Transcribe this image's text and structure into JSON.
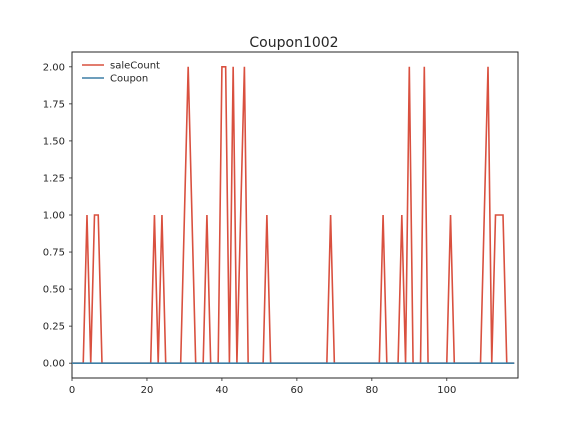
{
  "chart_data": {
    "type": "line",
    "title": "Coupon1002",
    "xlabel": "",
    "ylabel": "",
    "xlim": [
      0,
      119
    ],
    "ylim": [
      -0.1,
      2.1
    ],
    "xticks": [
      0,
      20,
      40,
      60,
      80,
      100
    ],
    "xtick_labels": [
      "0",
      "20",
      "40",
      "60",
      "80",
      "100"
    ],
    "yticks": [
      0.0,
      0.25,
      0.5,
      0.75,
      1.0,
      1.25,
      1.5,
      1.75,
      2.0
    ],
    "ytick_labels": [
      "0.00",
      "0.25",
      "0.50",
      "0.75",
      "1.00",
      "1.25",
      "1.50",
      "1.75",
      "2.00"
    ],
    "grid": false,
    "legend_position": "top-left",
    "series": [
      {
        "name": "saleCount",
        "color": "#d9503f",
        "x": [
          0,
          1,
          2,
          3,
          4,
          5,
          6,
          7,
          8,
          9,
          10,
          11,
          12,
          13,
          14,
          15,
          16,
          17,
          18,
          19,
          20,
          21,
          22,
          23,
          24,
          25,
          26,
          27,
          28,
          29,
          30,
          31,
          32,
          33,
          34,
          35,
          36,
          37,
          38,
          39,
          40,
          41,
          42,
          43,
          44,
          45,
          46,
          47,
          48,
          49,
          50,
          51,
          52,
          53,
          54,
          55,
          56,
          57,
          58,
          59,
          60,
          61,
          62,
          63,
          64,
          65,
          66,
          67,
          68,
          69,
          70,
          71,
          72,
          73,
          74,
          75,
          76,
          77,
          78,
          79,
          80,
          81,
          82,
          83,
          84,
          85,
          86,
          87,
          88,
          89,
          90,
          91,
          92,
          93,
          94,
          95,
          96,
          97,
          98,
          99,
          100,
          101,
          102,
          103,
          104,
          105,
          106,
          107,
          108,
          109,
          110,
          111,
          112,
          113,
          114,
          115,
          116,
          117,
          118
        ],
        "values": [
          0,
          0,
          0,
          0,
          1,
          0,
          1,
          1,
          0,
          0,
          0,
          0,
          0,
          0,
          0,
          0,
          0,
          0,
          0,
          0,
          0,
          0,
          1,
          0,
          1,
          0,
          0,
          0,
          0,
          0,
          1,
          2,
          1,
          0,
          0,
          0,
          1,
          0,
          0,
          0,
          2,
          2,
          0,
          2,
          0,
          1,
          2,
          0,
          0,
          0,
          0,
          0,
          1,
          0,
          0,
          0,
          0,
          0,
          0,
          0,
          0,
          0,
          0,
          0,
          0,
          0,
          0,
          0,
          0,
          1,
          0,
          0,
          0,
          0,
          0,
          0,
          0,
          0,
          0,
          0,
          0,
          0,
          0,
          1,
          0,
          0,
          0,
          0,
          1,
          0,
          2,
          0,
          0,
          0,
          2,
          0,
          0,
          0,
          0,
          0,
          0,
          1,
          0,
          0,
          0,
          0,
          0,
          0,
          0,
          0,
          1,
          2,
          0,
          1,
          1,
          1,
          0,
          0,
          0
        ]
      },
      {
        "name": "Coupon",
        "color": "#3d7fa6",
        "x": [
          0,
          1,
          2,
          3,
          4,
          5,
          6,
          7,
          8,
          9,
          10,
          11,
          12,
          13,
          14,
          15,
          16,
          17,
          18,
          19,
          20,
          21,
          22,
          23,
          24,
          25,
          26,
          27,
          28,
          29,
          30,
          31,
          32,
          33,
          34,
          35,
          36,
          37,
          38,
          39,
          40,
          41,
          42,
          43,
          44,
          45,
          46,
          47,
          48,
          49,
          50,
          51,
          52,
          53,
          54,
          55,
          56,
          57,
          58,
          59,
          60,
          61,
          62,
          63,
          64,
          65,
          66,
          67,
          68,
          69,
          70,
          71,
          72,
          73,
          74,
          75,
          76,
          77,
          78,
          79,
          80,
          81,
          82,
          83,
          84,
          85,
          86,
          87,
          88,
          89,
          90,
          91,
          92,
          93,
          94,
          95,
          96,
          97,
          98,
          99,
          100,
          101,
          102,
          103,
          104,
          105,
          106,
          107,
          108,
          109,
          110,
          111,
          112,
          113,
          114,
          115,
          116,
          117,
          118
        ],
        "values": [
          0,
          0,
          0,
          0,
          0,
          0,
          0,
          0,
          0,
          0,
          0,
          0,
          0,
          0,
          0,
          0,
          0,
          0,
          0,
          0,
          0,
          0,
          0,
          0,
          0,
          0,
          0,
          0,
          0,
          0,
          0,
          0,
          0,
          0,
          0,
          0,
          0,
          0,
          0,
          0,
          0,
          0,
          0,
          0,
          0,
          0,
          0,
          0,
          0,
          0,
          0,
          0,
          0,
          0,
          0,
          0,
          0,
          0,
          0,
          0,
          0,
          0,
          0,
          0,
          0,
          0,
          0,
          0,
          0,
          0,
          0,
          0,
          0,
          0,
          0,
          0,
          0,
          0,
          0,
          0,
          0,
          0,
          0,
          0,
          0,
          0,
          0,
          0,
          0,
          0,
          0,
          0,
          0,
          0,
          0,
          0,
          0,
          0,
          0,
          0,
          0,
          0,
          0,
          0,
          0,
          0,
          0,
          0,
          0,
          0,
          0,
          0,
          0,
          0,
          0,
          0,
          0,
          0,
          0
        ]
      }
    ]
  }
}
